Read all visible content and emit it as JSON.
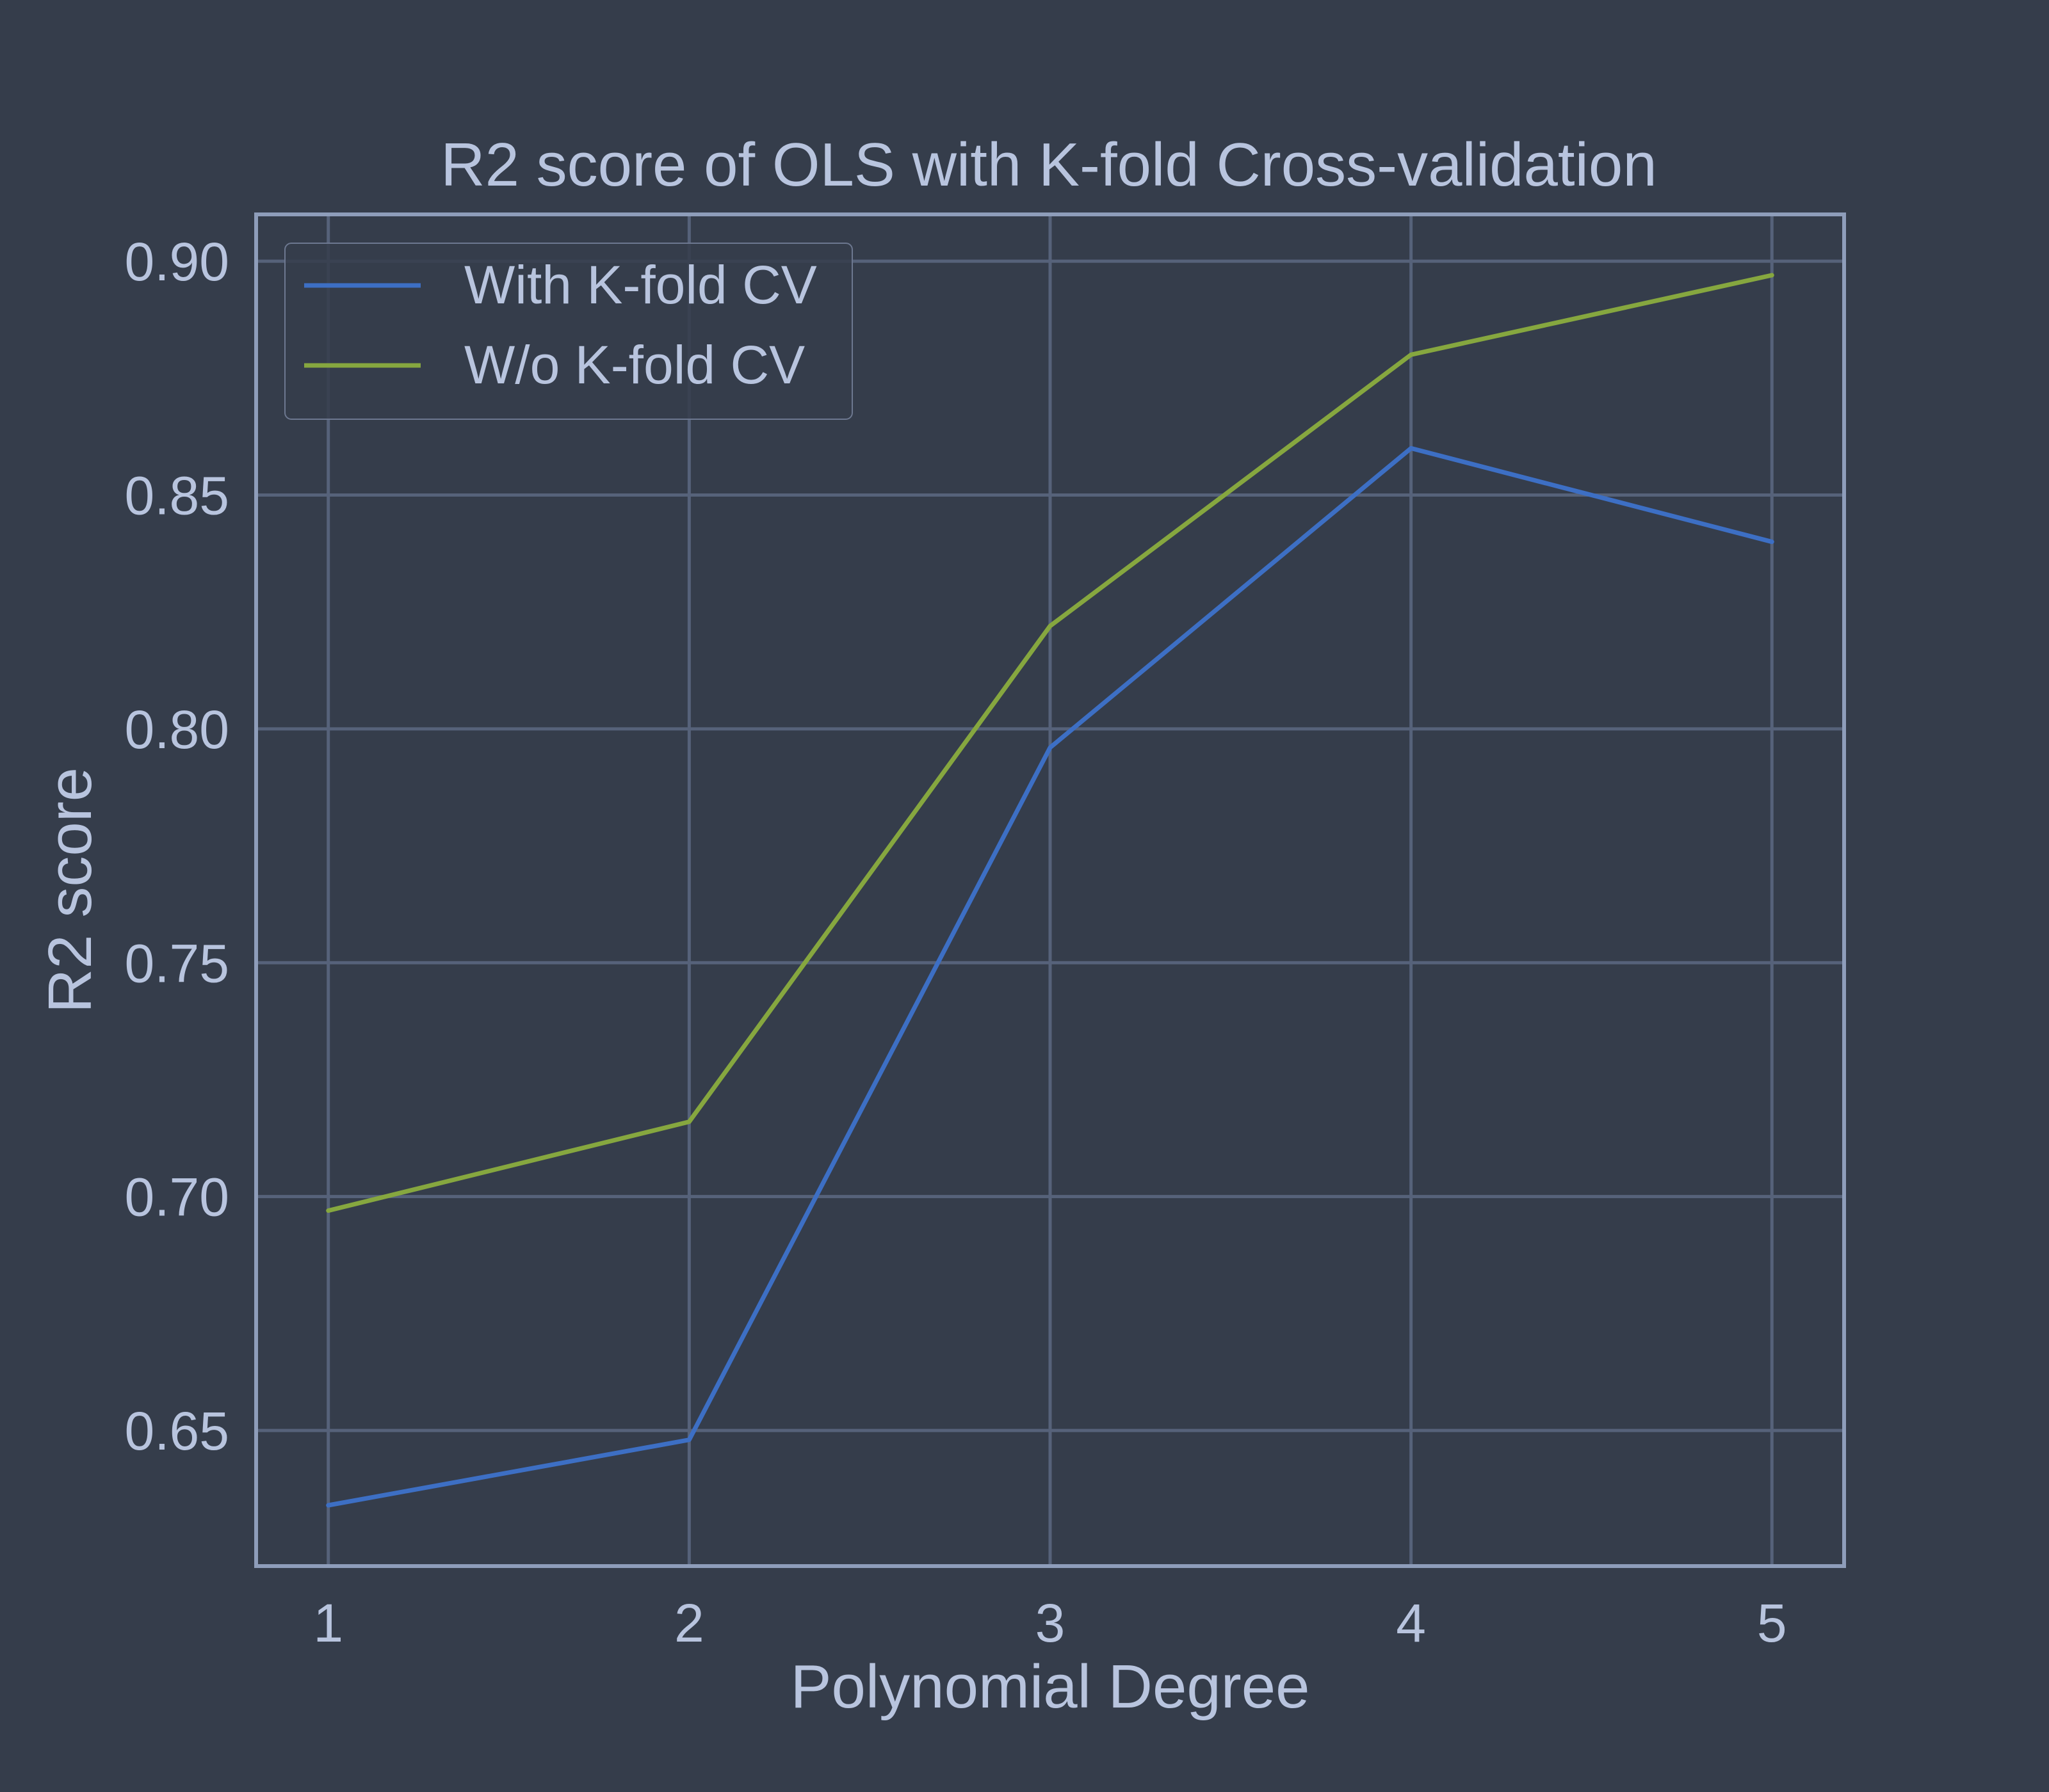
{
  "colors": {
    "background": "#353d4b",
    "text": "#b8c4de",
    "grid": "#56627a",
    "frame": "#8e9dba"
  },
  "chart_data": {
    "type": "line",
    "title": "R2 score of OLS with K-fold Cross-validation",
    "xlabel": "Polynomial Degree",
    "ylabel": "R2 score",
    "x": [
      1,
      2,
      3,
      4,
      5
    ],
    "x_ticks": [
      "1",
      "2",
      "3",
      "4",
      "5"
    ],
    "y_ticks": [
      "0.65",
      "0.70",
      "0.75",
      "0.80",
      "0.85",
      "0.90"
    ],
    "xlim": [
      0.8,
      5.2
    ],
    "ylim": [
      0.621,
      0.91
    ],
    "grid": true,
    "legend_position": "top-left",
    "series": [
      {
        "name": "With K-fold CV",
        "color": "#3d6fc4",
        "values": [
          0.634,
          0.648,
          0.796,
          0.86,
          0.84
        ]
      },
      {
        "name": "W/o K-fold CV",
        "color": "#86a73f",
        "values": [
          0.697,
          0.716,
          0.822,
          0.88,
          0.897
        ]
      }
    ]
  }
}
